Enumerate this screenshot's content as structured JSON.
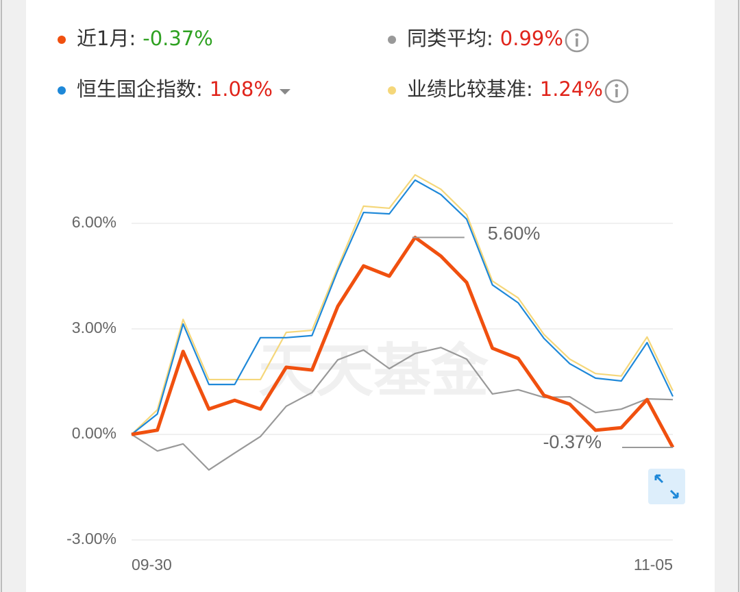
{
  "chart_data": {
    "type": "line",
    "categories": [
      "09-30",
      null,
      null,
      null,
      null,
      null,
      null,
      null,
      null,
      null,
      null,
      null,
      null,
      null,
      null,
      null,
      null,
      null,
      null,
      null,
      null,
      "11-05"
    ],
    "series": [
      {
        "name": "近1月:",
        "legend_value": "-0.37%",
        "legend_value_color": "#2ea121",
        "color": "#f0500f",
        "width": 5,
        "values": [
          0,
          0.12,
          2.36,
          0.72,
          0.97,
          0.72,
          1.91,
          1.83,
          3.64,
          4.79,
          4.5,
          5.6,
          5.07,
          4.32,
          2.45,
          2.16,
          1.11,
          0.86,
          0.12,
          0.19,
          0.99,
          -0.37
        ]
      },
      {
        "name": "同类平均:",
        "legend_value": "0.99%",
        "legend_value_color": "#e0241b",
        "color": "#999999",
        "width": 2.2,
        "values": [
          0,
          -0.47,
          -0.27,
          -1.01,
          -0.53,
          -0.06,
          0.8,
          1.19,
          2.12,
          2.4,
          1.87,
          2.3,
          2.47,
          2.14,
          1.15,
          1.27,
          1.05,
          1.07,
          0.62,
          0.72,
          1.01,
          0.99
        ]
      },
      {
        "name": "恒生国企指数:",
        "legend_value": "1.08%",
        "legend_value_color": "#e0241b",
        "color": "#1e88d8",
        "width": 2.2,
        "values": [
          0,
          0.58,
          3.14,
          1.42,
          1.42,
          2.75,
          2.75,
          2.81,
          4.66,
          6.31,
          6.27,
          7.23,
          6.82,
          6.12,
          4.25,
          3.74,
          2.73,
          2.01,
          1.6,
          1.52,
          2.61,
          1.08
        ]
      },
      {
        "name": "业绩比较基准:",
        "legend_value": "1.24%",
        "legend_value_color": "#e0241b",
        "color": "#f5d77a",
        "width": 2.2,
        "values": [
          0,
          0.7,
          3.27,
          1.56,
          1.56,
          1.56,
          2.9,
          2.96,
          4.75,
          6.49,
          6.43,
          7.38,
          6.97,
          6.25,
          4.36,
          3.88,
          2.84,
          2.14,
          1.73,
          1.66,
          2.77,
          1.24
        ]
      }
    ],
    "ylim": [
      -3,
      9
    ],
    "yticks": [
      {
        "value": -3,
        "label": "-3.00%"
      },
      {
        "value": 0,
        "label": "0.00%"
      },
      {
        "value": 3,
        "label": "3.00%"
      },
      {
        "value": 6,
        "label": "6.00%"
      }
    ],
    "grid": true,
    "annotations": [
      {
        "series": 0,
        "index": 11,
        "label": "5.60%"
      },
      {
        "series": 0,
        "index": 21,
        "label": "-0.37%"
      }
    ],
    "watermark": "天天基金"
  }
}
